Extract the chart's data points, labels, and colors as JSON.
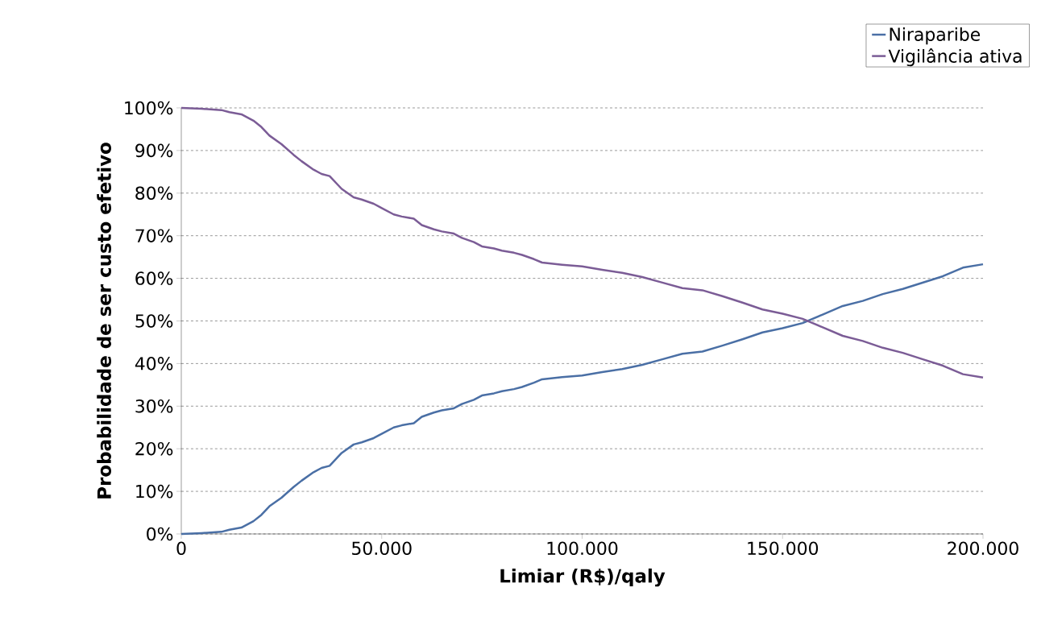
{
  "chart_data": {
    "type": "line",
    "xlabel": "Limiar  (R$)/qaly",
    "ylabel": "Probabilidade de ser custo efetivo",
    "xlim": [
      0,
      200000
    ],
    "ylim": [
      0,
      100
    ],
    "xticks": [
      {
        "value": 0,
        "label": "0"
      },
      {
        "value": 50000,
        "label": "50.000"
      },
      {
        "value": 100000,
        "label": "100.000"
      },
      {
        "value": 150000,
        "label": "150.000"
      },
      {
        "value": 200000,
        "label": "200.000"
      }
    ],
    "yticks": [
      {
        "value": 0,
        "label": "0%"
      },
      {
        "value": 10,
        "label": "10%"
      },
      {
        "value": 20,
        "label": "20%"
      },
      {
        "value": 30,
        "label": "30%"
      },
      {
        "value": 40,
        "label": "40%"
      },
      {
        "value": 50,
        "label": "50%"
      },
      {
        "value": 60,
        "label": "60%"
      },
      {
        "value": 70,
        "label": "70%"
      },
      {
        "value": 80,
        "label": "80%"
      },
      {
        "value": 90,
        "label": "90%"
      },
      {
        "value": 100,
        "label": "100%"
      }
    ],
    "grid": "y",
    "legend": "top right",
    "marker": "none",
    "line_style": "solid",
    "x": [
      0,
      5000,
      10000,
      12000,
      15000,
      18000,
      20000,
      22000,
      25000,
      28000,
      30000,
      33000,
      35000,
      37000,
      40000,
      43000,
      45000,
      48000,
      50000,
      53000,
      55000,
      58000,
      60000,
      63000,
      65000,
      68000,
      70000,
      73000,
      75000,
      78000,
      80000,
      83000,
      85000,
      88000,
      90000,
      95000,
      100000,
      105000,
      110000,
      115000,
      120000,
      125000,
      130000,
      135000,
      140000,
      145000,
      150000,
      155000,
      160000,
      165000,
      170000,
      175000,
      180000,
      185000,
      190000,
      195000,
      200000
    ],
    "series": [
      {
        "name": "Niraparibe",
        "color": "#4a6fa5",
        "values": [
          0,
          0.2,
          0.5,
          1,
          1.5,
          3,
          4.5,
          6.5,
          8.5,
          11,
          12.5,
          14.5,
          15.5,
          16,
          19,
          21,
          21.5,
          22.5,
          23.5,
          25,
          25.5,
          26,
          27.5,
          28.5,
          29,
          29.5,
          30.5,
          31.5,
          32.5,
          33,
          33.5,
          34,
          34.5,
          35.5,
          36.3,
          36.8,
          37.2,
          38,
          38.7,
          39.7,
          41,
          42.3,
          42.8,
          44.2,
          45.7,
          47.3,
          48.3,
          49.5,
          51.5,
          53.5,
          54.7,
          56.3,
          57.5,
          59,
          60.5,
          62.5,
          63.3
        ]
      },
      {
        "name": "Vigilância ativa",
        "color": "#7b5c96",
        "values": [
          100,
          99.8,
          99.5,
          99,
          98.5,
          97,
          95.5,
          93.5,
          91.5,
          89,
          87.5,
          85.5,
          84.5,
          84,
          81,
          79,
          78.5,
          77.5,
          76.5,
          75,
          74.5,
          74,
          72.5,
          71.5,
          71,
          70.5,
          69.5,
          68.5,
          67.5,
          67,
          66.5,
          66,
          65.5,
          64.5,
          63.7,
          63.2,
          62.8,
          62,
          61.3,
          60.3,
          59,
          57.7,
          57.2,
          55.8,
          54.3,
          52.7,
          51.7,
          50.5,
          48.5,
          46.5,
          45.3,
          43.7,
          42.5,
          41,
          39.5,
          37.5,
          36.7
        ]
      }
    ]
  }
}
